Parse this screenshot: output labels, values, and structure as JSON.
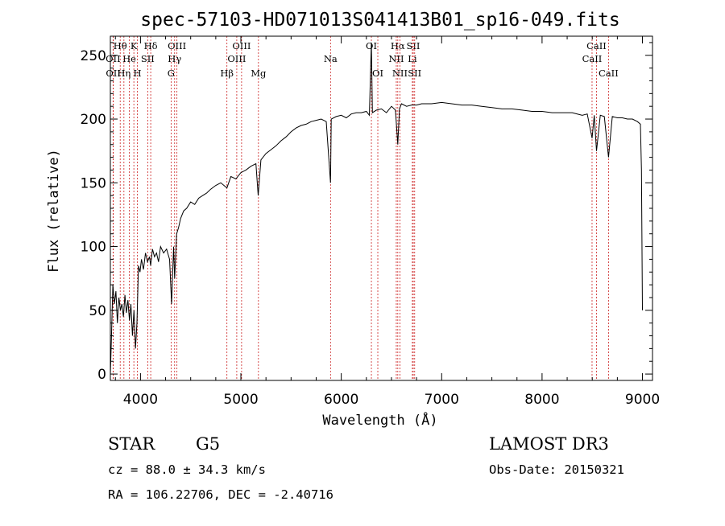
{
  "chart_data": {
    "type": "line",
    "title": "spec-57103-HD071013S041413B01_sp16-049.fits",
    "xlabel": "Wavelength (Å)",
    "ylabel": "Flux (relative)",
    "xlim": [
      3700,
      9100
    ],
    "ylim": [
      -5,
      265
    ],
    "xticks": [
      4000,
      5000,
      6000,
      7000,
      8000,
      9000
    ],
    "yticks": [
      0,
      50,
      100,
      150,
      200,
      250
    ],
    "xtick_labels": [
      "4000",
      "5000",
      "6000",
      "7000",
      "8000",
      "9000"
    ],
    "ytick_labels": [
      "0",
      "50",
      "100",
      "150",
      "200",
      "250"
    ],
    "series": [
      {
        "name": "spectrum",
        "x": [
          3700,
          3710,
          3725,
          3740,
          3755,
          3770,
          3785,
          3800,
          3815,
          3830,
          3845,
          3860,
          3875,
          3890,
          3905,
          3920,
          3935,
          3950,
          3965,
          3980,
          3995,
          4010,
          4030,
          4050,
          4070,
          4090,
          4101,
          4120,
          4140,
          4160,
          4180,
          4200,
          4230,
          4260,
          4290,
          4310,
          4330,
          4340,
          4360,
          4380,
          4400,
          4430,
          4460,
          4500,
          4540,
          4580,
          4620,
          4660,
          4700,
          4750,
          4800,
          4861,
          4900,
          4950,
          5000,
          5050,
          5100,
          5150,
          5172,
          5200,
          5250,
          5300,
          5350,
          5400,
          5450,
          5500,
          5550,
          5600,
          5650,
          5700,
          5750,
          5800,
          5850,
          5893,
          5900,
          5950,
          6000,
          6050,
          6100,
          6150,
          6200,
          6250,
          6280,
          6300,
          6310,
          6350,
          6400,
          6450,
          6500,
          6540,
          6563,
          6580,
          6600,
          6650,
          6700,
          6750,
          6800,
          6900,
          7000,
          7100,
          7200,
          7300,
          7400,
          7500,
          7600,
          7700,
          7800,
          7900,
          8000,
          8100,
          8200,
          8300,
          8400,
          8450,
          8498,
          8520,
          8542,
          8580,
          8620,
          8662,
          8700,
          8750,
          8800,
          8850,
          8900,
          8950,
          8980,
          8990,
          9000
        ],
        "y": [
          0,
          25,
          70,
          55,
          65,
          40,
          60,
          50,
          55,
          45,
          62,
          48,
          58,
          42,
          55,
          30,
          50,
          20,
          40,
          85,
          80,
          90,
          82,
          95,
          88,
          92,
          85,
          98,
          92,
          95,
          88,
          100,
          95,
          98,
          90,
          55,
          100,
          75,
          110,
          115,
          122,
          128,
          130,
          135,
          133,
          138,
          140,
          142,
          145,
          148,
          150,
          146,
          155,
          153,
          158,
          160,
          163,
          165,
          140,
          168,
          173,
          176,
          179,
          183,
          186,
          190,
          193,
          195,
          196,
          198,
          199,
          200,
          198,
          150,
          200,
          202,
          203,
          201,
          204,
          205,
          205,
          206,
          203,
          260,
          205,
          207,
          208,
          205,
          210,
          207,
          180,
          208,
          212,
          210,
          211,
          211,
          212,
          212,
          213,
          212,
          211,
          211,
          210,
          209,
          208,
          208,
          207,
          206,
          206,
          205,
          205,
          205,
          203,
          204,
          185,
          203,
          175,
          203,
          202,
          170,
          202,
          201,
          201,
          200,
          200,
          198,
          196,
          160,
          50
        ]
      }
    ],
    "line_marks": [
      {
        "label": "Hθ",
        "wl": 3798,
        "row": 1
      },
      {
        "label": "OII",
        "wl": 3727,
        "row": 2
      },
      {
        "label": "OII",
        "wl": 3729,
        "row": 3
      },
      {
        "label": "K",
        "wl": 3934,
        "row": 1
      },
      {
        "label": "He",
        "wl": 3889,
        "row": 2
      },
      {
        "label": "Hη",
        "wl": 3835,
        "row": 3
      },
      {
        "label": "H",
        "wl": 3969,
        "row": 3
      },
      {
        "label": "Hδ",
        "wl": 4102,
        "row": 1
      },
      {
        "label": "SII",
        "wl": 4072,
        "row": 2
      },
      {
        "label": "OIII",
        "wl": 4363,
        "row": 1
      },
      {
        "label": "Hγ",
        "wl": 4340,
        "row": 2
      },
      {
        "label": "G",
        "wl": 4305,
        "row": 3
      },
      {
        "label": "Hβ",
        "wl": 4861,
        "row": 3
      },
      {
        "label": "OIII",
        "wl": 5007,
        "row": 1
      },
      {
        "label": "OIII",
        "wl": 4959,
        "row": 2
      },
      {
        "label": "Mg",
        "wl": 5175,
        "row": 3
      },
      {
        "label": "Na",
        "wl": 5893,
        "row": 2
      },
      {
        "label": "OI",
        "wl": 6300,
        "row": 1
      },
      {
        "label": "OI",
        "wl": 6364,
        "row": 3
      },
      {
        "label": "Hα",
        "wl": 6563,
        "row": 1
      },
      {
        "label": "NII",
        "wl": 6548,
        "row": 2
      },
      {
        "label": "NII",
        "wl": 6584,
        "row": 3
      },
      {
        "label": "SII",
        "wl": 6717,
        "row": 1
      },
      {
        "label": "Li",
        "wl": 6708,
        "row": 2
      },
      {
        "label": "SII",
        "wl": 6731,
        "row": 3
      },
      {
        "label": "CaII",
        "wl": 8542,
        "row": 1
      },
      {
        "label": "CaII",
        "wl": 8498,
        "row": 2
      },
      {
        "label": "CaII",
        "wl": 8662,
        "row": 3
      }
    ]
  },
  "info": {
    "class": "STAR",
    "subclass": "G5",
    "survey": "LAMOST DR3",
    "cz": "cz = 88.0 ± 34.3 km/s",
    "obs_date": "Obs-Date: 20150321",
    "coords": "RA = 106.22706, DEC =  -2.40716"
  }
}
